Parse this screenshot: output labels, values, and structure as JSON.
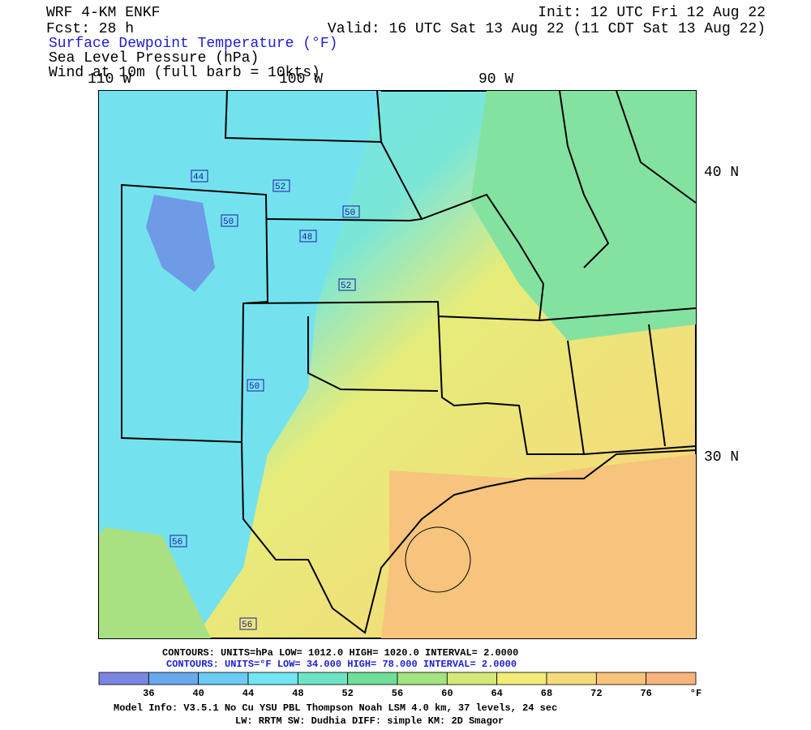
{
  "header": {
    "model": "WRF 4-KM ENKF",
    "forecast": "Fcst:   28 h",
    "init": "Init: 12 UTC Fri 12 Aug 22",
    "valid": "Valid: 16 UTC Sat 13 Aug 22 (11 CDT Sat 13 Aug 22)"
  },
  "fields": [
    "Surface Dewpoint Temperature (°F)",
    "Sea Level Pressure (hPa)",
    "Wind at 10m (full barb = 10kts)"
  ],
  "map": {
    "lon_labels": [
      "110 W",
      "100 W",
      "90 W"
    ],
    "lat_labels": [
      "40 N",
      "30 N"
    ],
    "contour_labels": [
      "44",
      "52",
      "50",
      "50",
      "48",
      "52",
      "50",
      "56",
      "56"
    ]
  },
  "contour_info": [
    "CONTOURS:  UNITS=hPa  LOW=  1012.0    HIGH=  1020.0    INTERVAL=   2.0000",
    "CONTOURS:  UNITS=°F  LOW=  34.000    HIGH=  78.000    INTERVAL=   2.0000"
  ],
  "colorbar": {
    "ticks": [
      36,
      40,
      44,
      48,
      52,
      56,
      60,
      64,
      68,
      72,
      76
    ],
    "unit": "°F",
    "colors": [
      "#7b86e0",
      "#68a8ee",
      "#6ccaf4",
      "#72e6f2",
      "#6ee4c4",
      "#70de98",
      "#a2e47e",
      "#d4ea78",
      "#f2ec78",
      "#f6da7a",
      "#f8c47a",
      "#f8b47a"
    ]
  },
  "footer": [
    "Model Info: V3.5.1    No Cu    YSU PBL   Thompson     Noah LSM   4.0 km,   37 levels,    24 sec",
    "LW: RRTM  SW: Dudhia  DIFF: simple  KM: 2D Smagor"
  ]
}
